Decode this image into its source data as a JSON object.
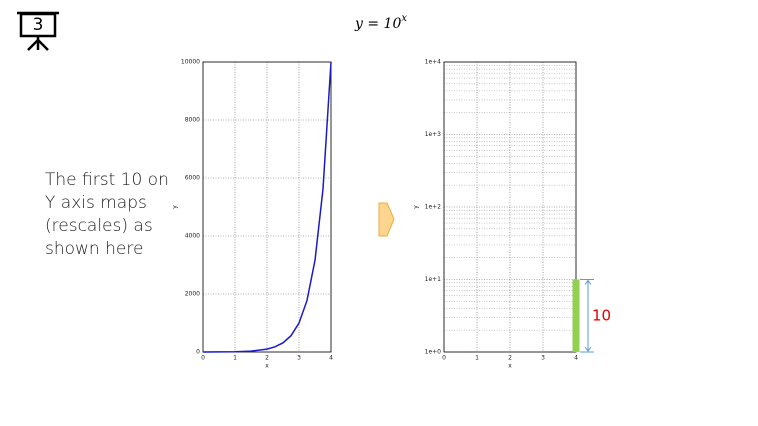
{
  "slide_number": "3",
  "formula": {
    "base": "y = 10",
    "exponent": "x"
  },
  "note": [
    "The first 10 on",
    "Y axis maps",
    "(rescales) as",
    "shown here"
  ],
  "chart_data": [
    {
      "type": "line",
      "x_label": "x",
      "y_label": "y",
      "x": [
        0,
        0.5,
        1,
        1.5,
        2,
        2.25,
        2.5,
        2.75,
        3,
        3.25,
        3.5,
        3.75,
        4
      ],
      "values": [
        1,
        3,
        10,
        32,
        100,
        178,
        316,
        562,
        1000,
        1778,
        3162,
        5623,
        10000
      ],
      "color": "#1a1acc",
      "xlim": [
        0,
        4
      ],
      "xticks": [
        0,
        1,
        2,
        3,
        4
      ],
      "ylim": [
        0,
        10000
      ],
      "yticks": [
        0,
        2000,
        4000,
        6000,
        8000,
        10000
      ],
      "grid": true
    },
    {
      "type": "bar",
      "x_label": "x",
      "y_label": "y",
      "log_scale": true,
      "x": [
        4
      ],
      "values": [
        10
      ],
      "color": "#92d050",
      "annotation": "10",
      "annotation_color": "#e00000",
      "xlim": [
        0,
        4
      ],
      "xticks": [
        0,
        1,
        2,
        3,
        4
      ],
      "ylim": [
        1,
        10000
      ],
      "yticks": [
        {
          "value": 1,
          "label": "1e+0"
        },
        {
          "value": 10,
          "label": "1e+1"
        },
        {
          "value": 100,
          "label": "1e+2"
        },
        {
          "value": 1000,
          "label": "1e+3"
        },
        {
          "value": 10000,
          "label": "1e+4"
        }
      ],
      "grid": true
    }
  ]
}
